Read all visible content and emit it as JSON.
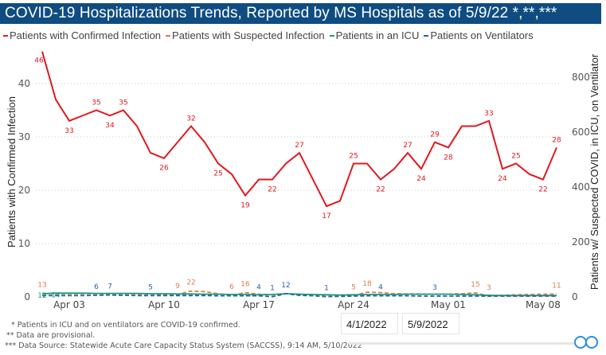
{
  "header": {
    "title": "COVID-19 Hospitalizations Trends, Reported by MS Hospitals as of 5/9/22 *,**,***"
  },
  "footer": {
    "notes": [
      "* Patients in ICU and on ventilators are COVID-19 confirmed.",
      "** Data are provisional.",
      "*** Data Source: Statewide Acute Care Capacity Status System (SACCSS), 9:14 AM, 5/10/2022"
    ]
  },
  "date_filter": {
    "start": "4/1/2022",
    "end": "5/9/2022"
  },
  "chart_data": {
    "type": "line",
    "title": "",
    "legend_position": "top-left",
    "grid": true,
    "x": [
      "4/1",
      "4/2",
      "4/3",
      "4/4",
      "4/5",
      "4/6",
      "4/7",
      "4/8",
      "4/9",
      "4/10",
      "4/11",
      "4/12",
      "4/13",
      "4/14",
      "4/15",
      "4/16",
      "4/17",
      "4/18",
      "4/19",
      "4/20",
      "4/21",
      "4/22",
      "4/23",
      "4/24",
      "4/25",
      "4/26",
      "4/27",
      "4/28",
      "4/29",
      "4/30",
      "5/1",
      "5/2",
      "5/3",
      "5/4",
      "5/5",
      "5/6",
      "5/7",
      "5/8",
      "5/9"
    ],
    "x_ticks": [
      {
        "label": "Apr 03",
        "index": 2
      },
      {
        "label": "Apr 10",
        "index": 9
      },
      {
        "label": "Apr 17",
        "index": 16
      },
      {
        "label": "Apr 24",
        "index": 23
      },
      {
        "label": "May 01",
        "index": 30
      },
      {
        "label": "May 08",
        "index": 37
      }
    ],
    "y_left": {
      "label": "Patients with Confirmed Infection",
      "ticks": [
        0,
        10,
        20,
        30,
        40
      ],
      "range": [
        0,
        47
      ]
    },
    "y_right": {
      "label": "Patients w/ Suspected COVID, in ICU, on Ventilator",
      "ticks": [
        0,
        200,
        400,
        600,
        800
      ],
      "range": [
        0,
        940
      ]
    },
    "series": [
      {
        "name": "Patients with Confirmed Infection",
        "axis": "left",
        "color": "#e0191f",
        "dash": false,
        "values": [
          46,
          37,
          33,
          34,
          35,
          34,
          35,
          32,
          27,
          26,
          29,
          32,
          29,
          25,
          23,
          19,
          22,
          22,
          25,
          27,
          22,
          17,
          18,
          25,
          25,
          22,
          24,
          27,
          24,
          29,
          28,
          32,
          32,
          33,
          24,
          25,
          23,
          22,
          28
        ],
        "labeled": [
          0,
          2,
          4,
          5,
          6,
          9,
          11,
          13,
          15,
          17,
          19,
          21,
          23,
          25,
          27,
          28,
          29,
          30,
          33,
          34,
          35,
          37,
          38
        ]
      },
      {
        "name": "Patients with Suspected Infection",
        "axis": "right",
        "color": "#e07b4f",
        "dash": true,
        "values": [
          13,
          12,
          12,
          12,
          12,
          12,
          12,
          11,
          11,
          10,
          9,
          22,
          20,
          12,
          6,
          16,
          10,
          8,
          12,
          10,
          8,
          7,
          6,
          5,
          18,
          16,
          12,
          11,
          11,
          10,
          10,
          12,
          15,
          3,
          6,
          8,
          9,
          10,
          11
        ],
        "labeled": [
          0,
          10,
          11,
          14,
          15,
          23,
          24,
          32,
          33,
          38
        ]
      },
      {
        "name": "Patients in an ICU",
        "axis": "right",
        "color": "#1a9e77",
        "dash": false,
        "values": [
          12,
          14,
          14,
          14,
          13,
          13,
          13,
          13,
          12,
          12,
          11,
          11,
          10,
          10,
          9,
          9,
          8,
          9,
          12,
          10,
          9,
          8,
          7,
          8,
          9,
          9,
          9,
          10,
          10,
          10,
          10,
          9,
          8,
          6,
          5,
          5,
          5,
          5,
          5
        ],
        "labeled": [
          0,
          1
        ]
      },
      {
        "name": "Patients on Ventilators",
        "axis": "right",
        "color": "#2a5fa8",
        "dash": true,
        "values": [
          5,
          5,
          5,
          5,
          6,
          7,
          6,
          5,
          5,
          5,
          5,
          5,
          5,
          4,
          4,
          4,
          4,
          1,
          12,
          6,
          4,
          1,
          2,
          3,
          4,
          4,
          4,
          4,
          3,
          3,
          3,
          3,
          3,
          3,
          3,
          3,
          3,
          3,
          3
        ],
        "labeled": [
          4,
          5,
          8,
          16,
          17,
          18,
          21,
          25,
          29
        ]
      }
    ]
  }
}
